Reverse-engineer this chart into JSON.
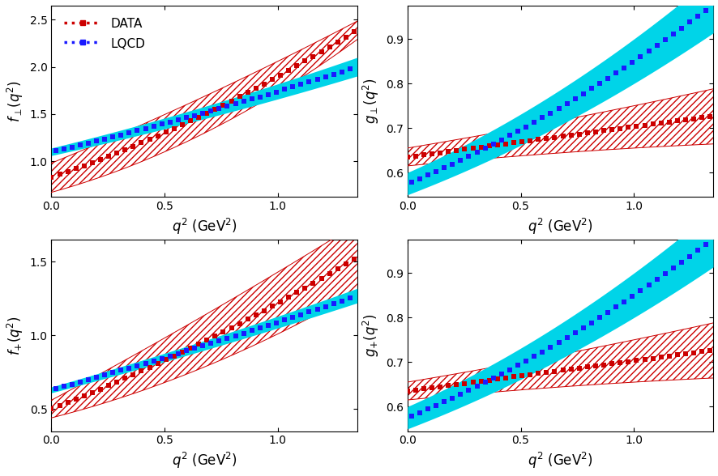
{
  "q2_min": 0.0,
  "q2_max": 1.35,
  "n_points": 300,
  "xlabel": "$q^2$ (GeV$^2$)",
  "xlim": [
    0.0,
    1.35
  ],
  "xticks": [
    0.0,
    0.5,
    1.0
  ],
  "data_color": "#cc0000",
  "lqcd_color": "#1a1aff",
  "cyan_color": "#00d4e8",
  "hatch_color": "#cc0000",
  "legend_data_label": "DATA",
  "legend_lqcd_label": "LQCD",
  "panels": [
    {
      "ylabel": "$f_{\\perp}(q^2)$",
      "ylim": [
        0.62,
        2.65
      ],
      "yticks": [
        1.0,
        1.5,
        2.0,
        2.5
      ],
      "show_legend": true,
      "data_c": [
        0.83,
        0.82,
        0.25
      ],
      "data_lo": [
        0.67,
        0.66,
        0.4
      ],
      "data_hi": [
        0.98,
        0.98,
        0.1
      ],
      "lqcd_c": [
        1.1,
        0.56,
        0.08
      ],
      "lqcd_lo": [
        1.06,
        0.53,
        0.07
      ],
      "lqcd_hi": [
        1.14,
        0.59,
        0.09
      ]
    },
    {
      "ylabel": "$g_{\\perp}(q^2)$",
      "ylim": [
        0.545,
        0.975
      ],
      "yticks": [
        0.6,
        0.7,
        0.8,
        0.9
      ],
      "show_legend": false,
      "data_c": [
        0.635,
        0.068,
        0.0
      ],
      "data_lo": [
        0.615,
        0.05,
        -0.01
      ],
      "data_hi": [
        0.655,
        0.085,
        0.01
      ],
      "lqcd_c": [
        0.575,
        0.21,
        0.065
      ],
      "lqcd_lo": [
        0.55,
        0.195,
        0.055
      ],
      "lqcd_hi": [
        0.6,
        0.225,
        0.075
      ]
    },
    {
      "ylabel": "$f_{+}(q^2)$",
      "ylim": [
        0.35,
        1.65
      ],
      "yticks": [
        0.5,
        1.0,
        1.5
      ],
      "show_legend": false,
      "data_c": [
        0.5,
        0.6,
        0.12
      ],
      "data_lo": [
        0.44,
        0.39,
        0.18
      ],
      "data_hi": [
        0.56,
        0.82,
        0.05
      ],
      "lqcd_c": [
        0.63,
        0.42,
        0.04
      ],
      "lqcd_lo": [
        0.61,
        0.405,
        0.035
      ],
      "lqcd_hi": [
        0.65,
        0.435,
        0.045
      ]
    },
    {
      "ylabel": "$g_{+}(q^2)$",
      "ylim": [
        0.545,
        0.975
      ],
      "yticks": [
        0.6,
        0.7,
        0.8,
        0.9
      ],
      "show_legend": false,
      "data_c": [
        0.635,
        0.068,
        0.0
      ],
      "data_lo": [
        0.615,
        0.05,
        -0.01
      ],
      "data_hi": [
        0.655,
        0.085,
        0.01
      ],
      "lqcd_c": [
        0.575,
        0.21,
        0.065
      ],
      "lqcd_lo": [
        0.55,
        0.195,
        0.055
      ],
      "lqcd_hi": [
        0.6,
        0.225,
        0.075
      ]
    }
  ]
}
